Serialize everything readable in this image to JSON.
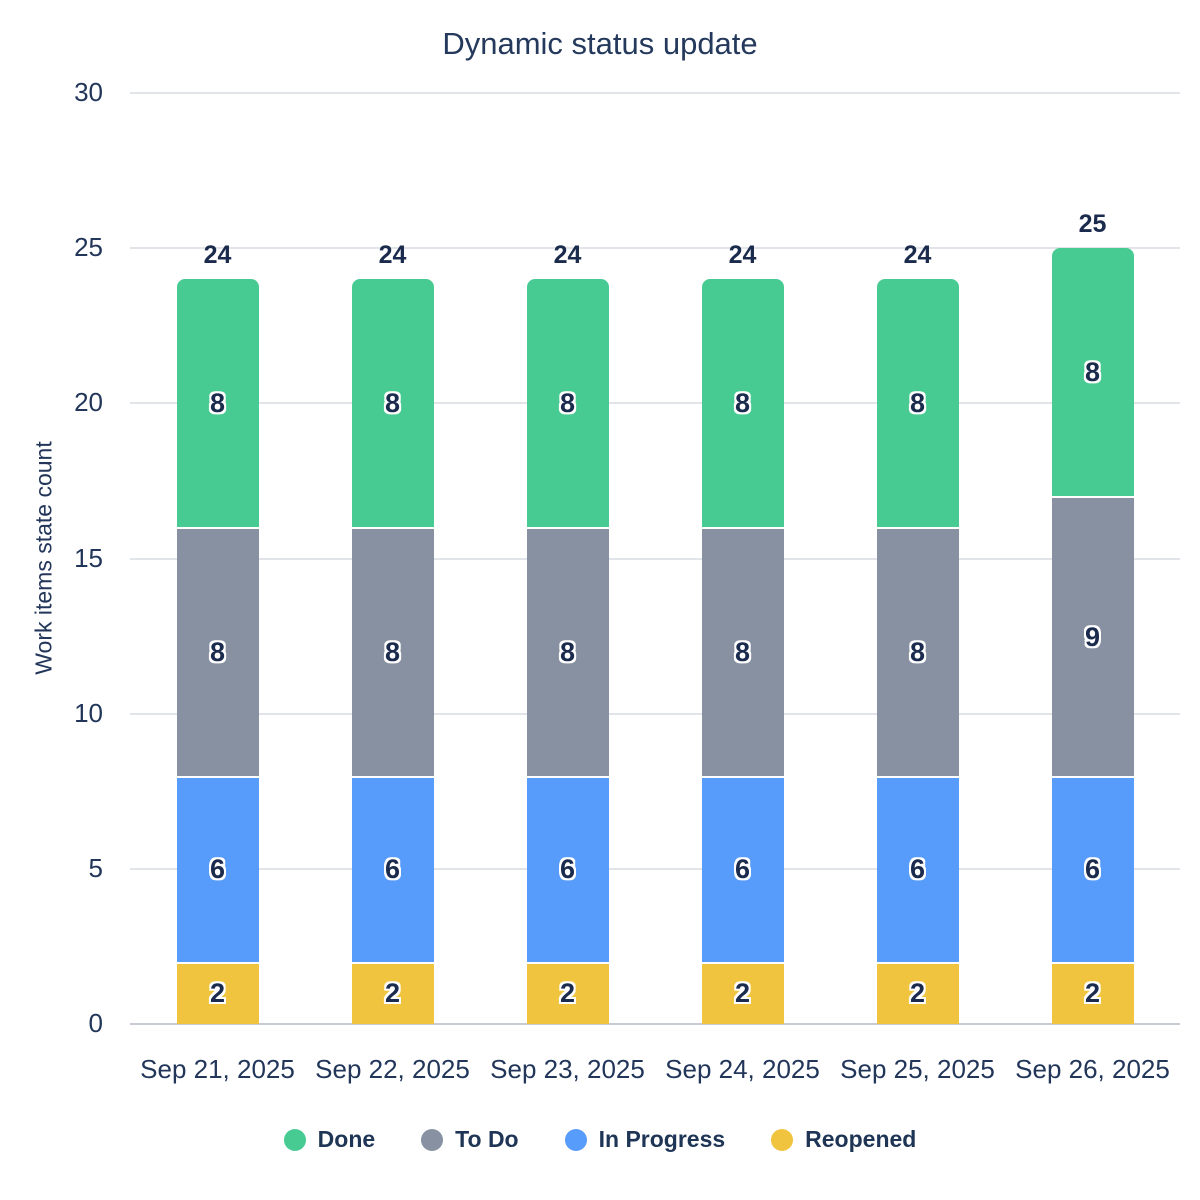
{
  "chart_data": {
    "type": "bar",
    "stacked": true,
    "title": "Dynamic status update",
    "ylabel": "Work items state count",
    "xlabel": "",
    "categories": [
      "Sep 21, 2025",
      "Sep 22, 2025",
      "Sep 23, 2025",
      "Sep 24, 2025",
      "Sep 25, 2025",
      "Sep 26, 2025"
    ],
    "series": [
      {
        "name": "Done",
        "color": "#47CB93",
        "values": [
          8,
          8,
          8,
          8,
          8,
          8
        ]
      },
      {
        "name": "To Do",
        "color": "#8891A2",
        "values": [
          8,
          8,
          8,
          8,
          8,
          9
        ]
      },
      {
        "name": "In Progress",
        "color": "#579CFA",
        "values": [
          6,
          6,
          6,
          6,
          6,
          6
        ]
      },
      {
        "name": "Reopened",
        "color": "#F0C43E",
        "values": [
          2,
          2,
          2,
          2,
          2,
          2
        ]
      }
    ],
    "totals": [
      24,
      24,
      24,
      24,
      24,
      25
    ],
    "yticks": [
      0,
      5,
      10,
      15,
      20,
      25,
      30
    ],
    "ylim": [
      0,
      30
    ],
    "grid": true,
    "legend_position": "bottom"
  },
  "colors": {
    "title_text": "#24395C",
    "axis_text": "#22365A",
    "value_text": "#1B2B4D",
    "gridline": "#E1E5EA",
    "axis_line": "#C7CCD4",
    "background": "#FFFFFF"
  }
}
